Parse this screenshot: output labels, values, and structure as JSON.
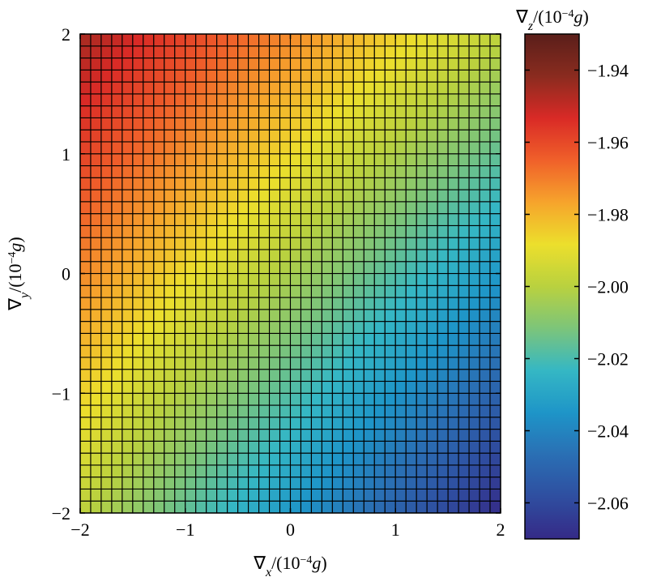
{
  "chart_data": {
    "type": "heatmap",
    "grid": {
      "nx": 40,
      "ny": 40
    },
    "x": {
      "min": -2,
      "max": 2,
      "ticks": [
        -2,
        -1,
        0,
        1,
        2
      ],
      "tick_labels": [
        "−2",
        "−1",
        "0",
        "1",
        "2"
      ]
    },
    "y": {
      "min": -2,
      "max": 2,
      "ticks": [
        -2,
        -1,
        0,
        1,
        2
      ],
      "tick_labels": [
        "−2",
        "−1",
        "0",
        "1",
        "2"
      ]
    },
    "model": {
      "z0": -2.003,
      "dz_dx": -0.0155,
      "dz_dy": 0.0155,
      "d2z_dxdy": 0.0011
    },
    "xlabel": {
      "sym": "∇",
      "sub": "x",
      "unit_pre": "/(10",
      "exp": "−4",
      "unit_var": "g",
      "unit_post": ")"
    },
    "ylabel": {
      "sym": "∇",
      "sub": "y",
      "unit_pre": "/(10",
      "exp": "−4",
      "unit_var": "g",
      "unit_post": ")"
    },
    "colorbar": {
      "min": -2.07,
      "max": -1.93,
      "ticks": [
        -2.06,
        -2.04,
        -2.02,
        -2.0,
        -1.98,
        -1.96,
        -1.94
      ],
      "tick_labels": [
        "−2.06",
        "−2.04",
        "−2.02",
        "−2.00",
        "−1.98",
        "−1.96",
        "−1.94"
      ],
      "label": {
        "sym": "∇",
        "sub": "z",
        "unit_pre": "/(10",
        "exp": "−4",
        "unit_var": "g",
        "unit_post": ")"
      },
      "colormap": [
        "#352a87",
        "#2f4ea0",
        "#2a6fb4",
        "#1e95c8",
        "#35b7c4",
        "#7cc57a",
        "#b9d13f",
        "#ecdf2c",
        "#f6a42c",
        "#f0602a",
        "#d92a26",
        "#8a2b1f",
        "#5a1f1a"
      ]
    },
    "grid_lines": true
  }
}
